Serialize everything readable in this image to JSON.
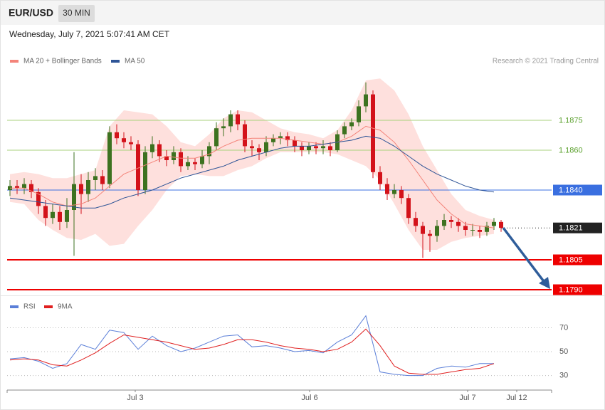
{
  "header": {
    "symbol": "EUR/USD",
    "interval": "30 MIN",
    "timestamp": "Wednesday, July 7, 2021 5:07:41 AM CET"
  },
  "chart_data": [
    {
      "type": "candlestick",
      "note": "Research © 2021 Trading Central",
      "up_color": "#3d7220",
      "down_color": "#d3121a",
      "band_color": "#fdd6d2",
      "xlim": [
        -0.4,
        76.1
      ],
      "ylim": [
        1.1787,
        1.19
      ],
      "ohlc": [
        [
          1.184,
          1.1845,
          1.1837,
          1.1842
        ],
        [
          1.1842,
          1.1845,
          1.1838,
          1.1841
        ],
        [
          1.1841,
          1.1846,
          1.1838,
          1.1843
        ],
        [
          1.1843,
          1.1845,
          1.1836,
          1.1839
        ],
        [
          1.1839,
          1.1841,
          1.1828,
          1.1832
        ],
        [
          1.1832,
          1.1835,
          1.1822,
          1.1826
        ],
        [
          1.1826,
          1.1833,
          1.1823,
          1.1829
        ],
        [
          1.1829,
          1.1832,
          1.182,
          1.1824
        ],
        [
          1.1824,
          1.1836,
          1.1821,
          1.183
        ],
        [
          1.183,
          1.1859,
          1.1807,
          1.1843
        ],
        [
          1.1843,
          1.1848,
          1.1828,
          1.1838
        ],
        [
          1.1838,
          1.1849,
          1.1834,
          1.1845
        ],
        [
          1.1845,
          1.1851,
          1.184,
          1.1847
        ],
        [
          1.1847,
          1.185,
          1.184,
          1.1843
        ],
        [
          1.1843,
          1.1872,
          1.1841,
          1.1869
        ],
        [
          1.1869,
          1.1873,
          1.1863,
          1.1866
        ],
        [
          1.1866,
          1.1869,
          1.1861,
          1.1864
        ],
        [
          1.1864,
          1.1867,
          1.186,
          1.1863
        ],
        [
          1.1863,
          1.1865,
          1.1837,
          1.184
        ],
        [
          1.184,
          1.1862,
          1.1838,
          1.1859
        ],
        [
          1.1859,
          1.1867,
          1.1856,
          1.1863
        ],
        [
          1.1863,
          1.1865,
          1.1854,
          1.1857
        ],
        [
          1.1857,
          1.186,
          1.1852,
          1.1855
        ],
        [
          1.1855,
          1.1862,
          1.1853,
          1.1859
        ],
        [
          1.1859,
          1.1861,
          1.1849,
          1.1852
        ],
        [
          1.1852,
          1.1857,
          1.185,
          1.1854
        ],
        [
          1.1854,
          1.1856,
          1.185,
          1.1853
        ],
        [
          1.1853,
          1.186,
          1.1851,
          1.1857
        ],
        [
          1.1857,
          1.1864,
          1.1853,
          1.1862
        ],
        [
          1.1862,
          1.1874,
          1.186,
          1.1871
        ],
        [
          1.1871,
          1.1876,
          1.1867,
          1.1872
        ],
        [
          1.1872,
          1.188,
          1.1869,
          1.1878
        ],
        [
          1.1878,
          1.188,
          1.187,
          1.1873
        ],
        [
          1.1873,
          1.1875,
          1.1859,
          1.1862
        ],
        [
          1.1862,
          1.1865,
          1.1857,
          1.1861
        ],
        [
          1.1861,
          1.1863,
          1.1855,
          1.1859
        ],
        [
          1.1859,
          1.1867,
          1.1857,
          1.1864
        ],
        [
          1.1864,
          1.1868,
          1.1862,
          1.1866
        ],
        [
          1.1866,
          1.1869,
          1.1863,
          1.1867
        ],
        [
          1.1867,
          1.1869,
          1.1862,
          1.1865
        ],
        [
          1.1865,
          1.1867,
          1.1859,
          1.1862
        ],
        [
          1.1862,
          1.1864,
          1.1857,
          1.186
        ],
        [
          1.186,
          1.1864,
          1.1858,
          1.1862
        ],
        [
          1.1862,
          1.1864,
          1.1858,
          1.1861
        ],
        [
          1.1861,
          1.1865,
          1.1858,
          1.1862
        ],
        [
          1.1862,
          1.1864,
          1.1857,
          1.186
        ],
        [
          1.186,
          1.187,
          1.1859,
          1.1868
        ],
        [
          1.1868,
          1.1874,
          1.1866,
          1.1872
        ],
        [
          1.1872,
          1.1876,
          1.187,
          1.1874
        ],
        [
          1.1874,
          1.1885,
          1.1872,
          1.1882
        ],
        [
          1.1882,
          1.1894,
          1.1879,
          1.1888
        ],
        [
          1.1888,
          1.189,
          1.1846,
          1.1849
        ],
        [
          1.1849,
          1.1852,
          1.184,
          1.1843
        ],
        [
          1.1843,
          1.1846,
          1.1835,
          1.1838
        ],
        [
          1.1838,
          1.1843,
          1.1836,
          1.184
        ],
        [
          1.184,
          1.1842,
          1.1833,
          1.1836
        ],
        [
          1.1836,
          1.1838,
          1.1823,
          1.1826
        ],
        [
          1.1826,
          1.1829,
          1.1819,
          1.1822
        ],
        [
          1.1822,
          1.1824,
          1.1806,
          1.1818
        ],
        [
          1.1818,
          1.182,
          1.1809,
          1.1817
        ],
        [
          1.1817,
          1.1825,
          1.1814,
          1.1822
        ],
        [
          1.1822,
          1.1828,
          1.182,
          1.1825
        ],
        [
          1.1825,
          1.1827,
          1.1821,
          1.1824
        ],
        [
          1.1824,
          1.1826,
          1.1819,
          1.1822
        ],
        [
          1.1822,
          1.1824,
          1.1817,
          1.182
        ],
        [
          1.182,
          1.1823,
          1.1817,
          1.182
        ],
        [
          1.182,
          1.1822,
          1.1816,
          1.1819
        ],
        [
          1.1819,
          1.1824,
          1.1817,
          1.1822
        ],
        [
          1.1822,
          1.1826,
          1.182,
          1.1824
        ],
        [
          1.1824,
          1.1825,
          1.1819,
          1.1821
        ]
      ],
      "x": [
        0,
        2,
        4,
        6,
        8,
        10,
        12,
        14,
        16,
        18,
        20,
        22,
        24,
        26,
        28,
        30,
        32,
        34,
        36,
        38,
        40,
        42,
        44,
        46,
        48,
        50,
        52,
        54,
        56,
        58,
        60,
        62,
        64,
        66,
        68
      ],
      "series": [
        {
          "name": "MA 20 + Bollinger Bands",
          "color": "#f4847a",
          "values": [
            1.1841,
            1.1841,
            1.1838,
            1.1834,
            1.1832,
            1.1833,
            1.1836,
            1.1842,
            1.1848,
            1.1851,
            1.1854,
            1.1857,
            1.1856,
            1.1856,
            1.1858,
            1.1862,
            1.1865,
            1.1866,
            1.1866,
            1.1866,
            1.1865,
            1.1864,
            1.1863,
            1.1864,
            1.1867,
            1.1872,
            1.187,
            1.1864,
            1.1855,
            1.1845,
            1.1835,
            1.1828,
            1.1823,
            1.1822,
            1.1821
          ],
          "upper": [
            1.1848,
            1.1849,
            1.1848,
            1.1846,
            1.1846,
            1.1848,
            1.185,
            1.1872,
            1.188,
            1.1879,
            1.1878,
            1.1872,
            1.1864,
            1.1862,
            1.1868,
            1.1876,
            1.188,
            1.1879,
            1.1875,
            1.1871,
            1.1869,
            1.1868,
            1.1866,
            1.187,
            1.188,
            1.1895,
            1.1896,
            1.189,
            1.1878,
            1.1862,
            1.185,
            1.1838,
            1.183,
            1.1827,
            1.1825
          ],
          "lower": [
            1.1834,
            1.1833,
            1.1825,
            1.182,
            1.1816,
            1.1815,
            1.1818,
            1.1812,
            1.1813,
            1.1822,
            1.183,
            1.184,
            1.1847,
            1.1848,
            1.1847,
            1.1847,
            1.185,
            1.1852,
            1.1856,
            1.1859,
            1.1859,
            1.1859,
            1.1859,
            1.1858,
            1.1855,
            1.1852,
            1.1845,
            1.1833,
            1.182,
            1.181,
            1.181,
            1.1814,
            1.1816,
            1.1817,
            1.1818
          ]
        },
        {
          "name": "MA 50",
          "color": "#2f5597",
          "values": [
            1.1836,
            1.1835,
            1.1834,
            1.1833,
            1.1832,
            1.1831,
            1.1831,
            1.1833,
            1.1836,
            1.1838,
            1.184,
            1.1843,
            1.1846,
            1.1848,
            1.185,
            1.1852,
            1.1855,
            1.1857,
            1.1859,
            1.1861,
            1.1862,
            1.1862,
            1.1863,
            1.1864,
            1.1865,
            1.1867,
            1.1866,
            1.1862,
            1.1857,
            1.1852,
            1.1848,
            1.1845,
            1.1842,
            1.184,
            1.1839
          ]
        }
      ],
      "levels": [
        {
          "value": 1.1875,
          "color": "#a8d27c",
          "text_color": "#5aa02c",
          "boxed": false,
          "style": "solid",
          "width": 1
        },
        {
          "value": 1.186,
          "label": "1.1860",
          "color": "#a8d27c",
          "text_color": "#5aa02c",
          "boxed": false,
          "style": "solid",
          "width": 1
        },
        {
          "value": 1.184,
          "label": "1.1840",
          "color": "#3a6fe0",
          "text_color": "#ffffff",
          "boxed": true,
          "style": "solid",
          "width": 1
        },
        {
          "value": 1.1821,
          "color": "#222222",
          "text_color": "#ffffff",
          "boxed": true,
          "style": "dotted",
          "width": 1
        },
        {
          "value": 1.1805,
          "color": "#ee0000",
          "text_color": "#ffffff",
          "boxed": true,
          "style": "solid",
          "width": 2
        },
        {
          "value": 1.179,
          "label": "1.1790",
          "color": "#ee0000",
          "text_color": "#ffffff",
          "boxed": true,
          "style": "solid",
          "width": 2
        }
      ]
    },
    {
      "type": "line",
      "xlim": [
        -0.4,
        76.1
      ],
      "ylim": [
        22,
        84
      ],
      "yticks": [
        70,
        50,
        30
      ],
      "xticks": [
        {
          "value": 17.6,
          "label": "Jul 3"
        },
        {
          "value": 42.1,
          "label": "Jul 6"
        },
        {
          "value": 64.3,
          "label": "Jul 7"
        },
        {
          "value": 71.2,
          "label": "Jul 12"
        }
      ],
      "x": [
        0,
        2,
        4,
        6,
        8,
        10,
        12,
        14,
        16,
        18,
        20,
        22,
        24,
        26,
        28,
        30,
        32,
        34,
        36,
        38,
        40,
        42,
        44,
        46,
        48,
        50,
        52,
        54,
        56,
        58,
        60,
        62,
        64,
        66,
        68
      ],
      "series": [
        {
          "name": "RSI",
          "color": "#5b7fd8",
          "values": [
            44,
            45,
            42,
            36,
            40,
            56,
            52,
            68,
            66,
            52,
            63,
            55,
            50,
            53,
            58,
            63,
            64,
            54,
            55,
            53,
            50,
            51,
            49,
            58,
            64,
            80,
            33,
            31,
            30,
            30,
            36,
            38,
            37,
            40,
            40
          ]
        },
        {
          "name": "9MA",
          "color": "#e02020",
          "values": [
            43,
            44,
            43,
            39,
            38,
            43,
            49,
            57,
            64,
            62,
            60,
            58,
            55,
            52,
            53,
            56,
            60,
            60,
            58,
            55,
            53,
            52,
            50,
            52,
            58,
            69,
            55,
            38,
            32,
            31,
            31,
            33,
            35,
            36,
            40
          ]
        }
      ]
    }
  ]
}
